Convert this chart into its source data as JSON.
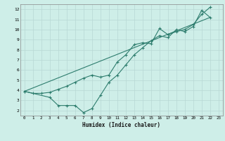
{
  "background_color": "#ceeee8",
  "grid_color": "#b8d8d4",
  "line_color": "#2e7d6e",
  "xlabel": "Humidex (Indice chaleur)",
  "xlim": [
    -0.5,
    23.5
  ],
  "ylim": [
    1.5,
    12.5
  ],
  "xtick_labels": [
    "0",
    "1",
    "2",
    "3",
    "4",
    "5",
    "6",
    "7",
    "8",
    "9",
    "10",
    "11",
    "12",
    "13",
    "14",
    "15",
    "16",
    "17",
    "18",
    "19",
    "20",
    "21",
    "22",
    "23"
  ],
  "ytick_labels": [
    "2",
    "3",
    "4",
    "5",
    "6",
    "7",
    "8",
    "9",
    "10",
    "11",
    "12"
  ],
  "series1_x": [
    0,
    1,
    2,
    3,
    4,
    5,
    6,
    7,
    8,
    9,
    10,
    11,
    12,
    13,
    14,
    15,
    16,
    17,
    18,
    19,
    20,
    21,
    22
  ],
  "series1_y": [
    3.9,
    3.7,
    3.7,
    3.8,
    4.1,
    4.4,
    4.8,
    5.2,
    5.5,
    5.3,
    5.5,
    6.8,
    7.5,
    8.5,
    8.7,
    8.6,
    10.1,
    9.5,
    9.8,
    10.0,
    10.5,
    11.5,
    12.2
  ],
  "series2_x": [
    0,
    3,
    4,
    5,
    6,
    7,
    8,
    9,
    10,
    11,
    12,
    13,
    14,
    15,
    16,
    17,
    18,
    19,
    20,
    21,
    22
  ],
  "series2_y": [
    3.9,
    3.3,
    2.5,
    2.5,
    2.5,
    1.8,
    2.2,
    3.5,
    4.8,
    5.5,
    6.5,
    7.5,
    8.2,
    8.9,
    9.4,
    9.2,
    10.0,
    9.8,
    10.3,
    11.9,
    11.2
  ],
  "series3_x": [
    0,
    22
  ],
  "series3_y": [
    3.9,
    11.2
  ]
}
